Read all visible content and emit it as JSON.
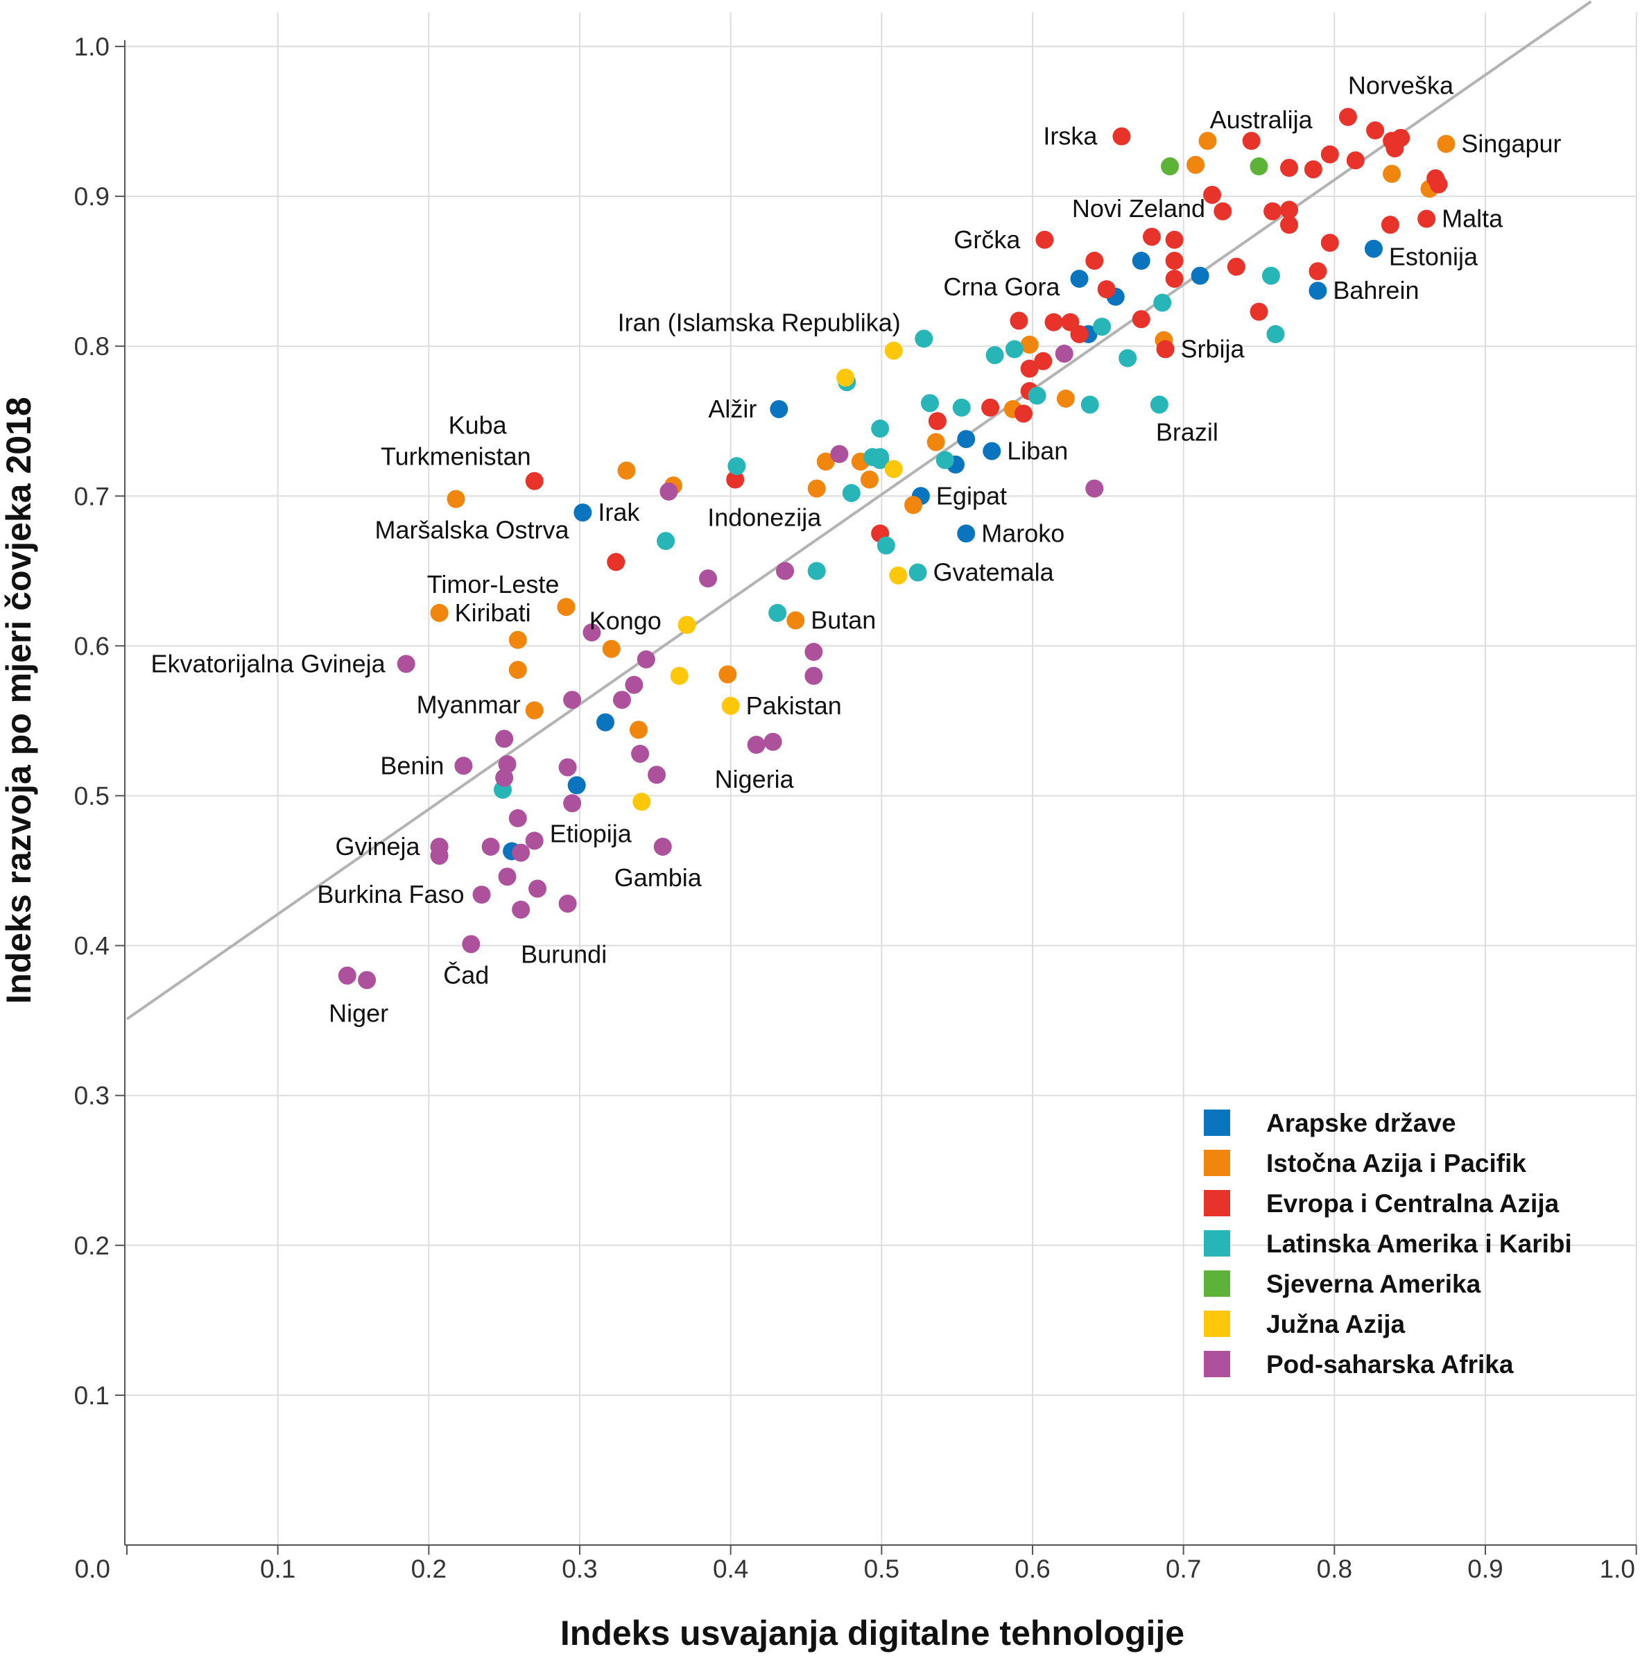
{
  "chart_data": {
    "type": "scatter",
    "title": "",
    "xlabel": "Indeks usvajanja digitalne tehnologije",
    "ylabel": "Indeks razvoja po mjeri čovjeka 2018",
    "xlim": [
      0.0,
      1.0
    ],
    "ylim": [
      0.0,
      1.0
    ],
    "x_ticks": [
      "0.0",
      "0.1",
      "0.2",
      "0.3",
      "0.4",
      "0.5",
      "0.6",
      "0.7",
      "0.8",
      "0.9",
      "1.0"
    ],
    "y_ticks": [
      "0.1",
      "0.2",
      "0.3",
      "0.4",
      "0.5",
      "0.6",
      "0.7",
      "0.8",
      "0.9",
      "1.0"
    ],
    "grid": true,
    "trendline": {
      "x": [
        0.0,
        0.97
      ],
      "y": [
        0.351,
        1.03
      ],
      "color": "#b3b3b3"
    },
    "legend_position": "bottom-right",
    "series": [
      {
        "name": "Arapske države",
        "color": "#0a74be",
        "points": [
          [
            0.432,
            0.758
          ],
          [
            0.302,
            0.689
          ],
          [
            0.317,
            0.549
          ],
          [
            0.298,
            0.507
          ],
          [
            0.255,
            0.463
          ],
          [
            0.526,
            0.7
          ],
          [
            0.549,
            0.721
          ],
          [
            0.556,
            0.738
          ],
          [
            0.573,
            0.73
          ],
          [
            0.556,
            0.675
          ],
          [
            0.631,
            0.845
          ],
          [
            0.637,
            0.808
          ],
          [
            0.655,
            0.833
          ],
          [
            0.672,
            0.857
          ],
          [
            0.711,
            0.847
          ],
          [
            0.826,
            0.865
          ],
          [
            0.789,
            0.837
          ]
        ]
      },
      {
        "name": "Istočna Azija i Pacifik",
        "color": "#f0860d",
        "points": [
          [
            0.218,
            0.698
          ],
          [
            0.331,
            0.717
          ],
          [
            0.362,
            0.707
          ],
          [
            0.291,
            0.626
          ],
          [
            0.207,
            0.622
          ],
          [
            0.259,
            0.604
          ],
          [
            0.259,
            0.584
          ],
          [
            0.321,
            0.598
          ],
          [
            0.27,
            0.557
          ],
          [
            0.339,
            0.544
          ],
          [
            0.398,
            0.581
          ],
          [
            0.443,
            0.617
          ],
          [
            0.457,
            0.705
          ],
          [
            0.463,
            0.723
          ],
          [
            0.486,
            0.723
          ],
          [
            0.492,
            0.711
          ],
          [
            0.536,
            0.736
          ],
          [
            0.521,
            0.694
          ],
          [
            0.587,
            0.758
          ],
          [
            0.598,
            0.801
          ],
          [
            0.622,
            0.765
          ],
          [
            0.687,
            0.804
          ],
          [
            0.708,
            0.921
          ],
          [
            0.716,
            0.937
          ],
          [
            0.838,
            0.915
          ],
          [
            0.863,
            0.905
          ],
          [
            0.874,
            0.935
          ]
        ]
      },
      {
        "name": "Evropa i Centralna Azija",
        "color": "#e8332a",
        "points": [
          [
            0.27,
            0.71
          ],
          [
            0.324,
            0.656
          ],
          [
            0.403,
            0.711
          ],
          [
            0.499,
            0.675
          ],
          [
            0.537,
            0.75
          ],
          [
            0.572,
            0.759
          ],
          [
            0.594,
            0.755
          ],
          [
            0.598,
            0.77
          ],
          [
            0.598,
            0.785
          ],
          [
            0.607,
            0.79
          ],
          [
            0.591,
            0.817
          ],
          [
            0.614,
            0.816
          ],
          [
            0.625,
            0.816
          ],
          [
            0.631,
            0.808
          ],
          [
            0.608,
            0.871
          ],
          [
            0.641,
            0.857
          ],
          [
            0.649,
            0.838
          ],
          [
            0.672,
            0.818
          ],
          [
            0.679,
            0.873
          ],
          [
            0.694,
            0.871
          ],
          [
            0.694,
            0.857
          ],
          [
            0.694,
            0.845
          ],
          [
            0.688,
            0.798
          ],
          [
            0.659,
            0.94
          ],
          [
            0.719,
            0.901
          ],
          [
            0.726,
            0.89
          ],
          [
            0.735,
            0.853
          ],
          [
            0.745,
            0.937
          ],
          [
            0.75,
            0.823
          ],
          [
            0.759,
            0.89
          ],
          [
            0.77,
            0.919
          ],
          [
            0.77,
            0.891
          ],
          [
            0.77,
            0.881
          ],
          [
            0.786,
            0.918
          ],
          [
            0.797,
            0.928
          ],
          [
            0.797,
            0.869
          ],
          [
            0.789,
            0.85
          ],
          [
            0.809,
            0.953
          ],
          [
            0.827,
            0.944
          ],
          [
            0.814,
            0.924
          ],
          [
            0.838,
            0.937
          ],
          [
            0.844,
            0.939
          ],
          [
            0.84,
            0.932
          ],
          [
            0.837,
            0.881
          ],
          [
            0.861,
            0.885
          ],
          [
            0.867,
            0.912
          ],
          [
            0.869,
            0.908
          ]
        ]
      },
      {
        "name": "Latinska Amerika i Karibi",
        "color": "#27b5b7",
        "points": [
          [
            0.249,
            0.504
          ],
          [
            0.357,
            0.67
          ],
          [
            0.404,
            0.72
          ],
          [
            0.431,
            0.622
          ],
          [
            0.457,
            0.65
          ],
          [
            0.477,
            0.776
          ],
          [
            0.48,
            0.702
          ],
          [
            0.494,
            0.726
          ],
          [
            0.499,
            0.745
          ],
          [
            0.499,
            0.726
          ],
          [
            0.499,
            0.724
          ],
          [
            0.503,
            0.667
          ],
          [
            0.524,
            0.649
          ],
          [
            0.528,
            0.805
          ],
          [
            0.532,
            0.762
          ],
          [
            0.542,
            0.724
          ],
          [
            0.553,
            0.759
          ],
          [
            0.575,
            0.794
          ],
          [
            0.588,
            0.798
          ],
          [
            0.603,
            0.767
          ],
          [
            0.638,
            0.761
          ],
          [
            0.646,
            0.813
          ],
          [
            0.663,
            0.792
          ],
          [
            0.684,
            0.761
          ],
          [
            0.686,
            0.829
          ],
          [
            0.758,
            0.847
          ],
          [
            0.761,
            0.808
          ]
        ]
      },
      {
        "name": "Sjeverna Amerika",
        "color": "#5cb337",
        "points": [
          [
            0.691,
            0.92
          ],
          [
            0.75,
            0.92
          ]
        ]
      },
      {
        "name": "Južna Azija",
        "color": "#fec70a",
        "points": [
          [
            0.341,
            0.496
          ],
          [
            0.366,
            0.58
          ],
          [
            0.371,
            0.614
          ],
          [
            0.4,
            0.56
          ],
          [
            0.476,
            0.779
          ],
          [
            0.508,
            0.797
          ],
          [
            0.508,
            0.718
          ],
          [
            0.511,
            0.647
          ]
        ]
      },
      {
        "name": "Pod-saharska Afrika",
        "color": "#ad519d",
        "points": [
          [
            0.146,
            0.38
          ],
          [
            0.159,
            0.377
          ],
          [
            0.185,
            0.588
          ],
          [
            0.223,
            0.52
          ],
          [
            0.207,
            0.466
          ],
          [
            0.207,
            0.46
          ],
          [
            0.228,
            0.401
          ],
          [
            0.235,
            0.434
          ],
          [
            0.241,
            0.466
          ],
          [
            0.25,
            0.538
          ],
          [
            0.252,
            0.521
          ],
          [
            0.25,
            0.512
          ],
          [
            0.252,
            0.446
          ],
          [
            0.259,
            0.485
          ],
          [
            0.261,
            0.462
          ],
          [
            0.261,
            0.424
          ],
          [
            0.27,
            0.47
          ],
          [
            0.272,
            0.438
          ],
          [
            0.292,
            0.428
          ],
          [
            0.292,
            0.519
          ],
          [
            0.295,
            0.495
          ],
          [
            0.295,
            0.564
          ],
          [
            0.308,
            0.609
          ],
          [
            0.328,
            0.564
          ],
          [
            0.336,
            0.574
          ],
          [
            0.34,
            0.528
          ],
          [
            0.344,
            0.591
          ],
          [
            0.351,
            0.514
          ],
          [
            0.355,
            0.466
          ],
          [
            0.359,
            0.703
          ],
          [
            0.385,
            0.645
          ],
          [
            0.417,
            0.534
          ],
          [
            0.428,
            0.536
          ],
          [
            0.436,
            0.65
          ],
          [
            0.455,
            0.596
          ],
          [
            0.455,
            0.58
          ],
          [
            0.472,
            0.728
          ],
          [
            0.621,
            0.795
          ],
          [
            0.641,
            0.705
          ]
        ]
      }
    ],
    "annotations": [
      {
        "text": "Norveška",
        "x": 0.809,
        "y": 0.953
      },
      {
        "text": "Australija",
        "x": 0.745,
        "y": 0.937
      },
      {
        "text": "Irska",
        "x": 0.659,
        "y": 0.94
      },
      {
        "text": "Singapur",
        "x": 0.874,
        "y": 0.935
      },
      {
        "text": "Novi Zeland",
        "x": 0.719,
        "y": 0.901
      },
      {
        "text": "Malta",
        "x": 0.861,
        "y": 0.885
      },
      {
        "text": "Grčka",
        "x": 0.608,
        "y": 0.871
      },
      {
        "text": "Estonija",
        "x": 0.826,
        "y": 0.865
      },
      {
        "text": "Crna Gora",
        "x": 0.631,
        "y": 0.845
      },
      {
        "text": "Bahrein",
        "x": 0.789,
        "y": 0.837
      },
      {
        "text": "Iran (Islamska Republika)",
        "x": 0.508,
        "y": 0.797
      },
      {
        "text": "Srbija",
        "x": 0.688,
        "y": 0.798
      },
      {
        "text": "Kuba",
        "x": 0.27,
        "y": 0.71
      },
      {
        "text": "Alžir",
        "x": 0.432,
        "y": 0.758
      },
      {
        "text": "Brazil",
        "x": 0.684,
        "y": 0.761
      },
      {
        "text": "Turkmenistan",
        "x": 0.27,
        "y": 0.71
      },
      {
        "text": "Liban",
        "x": 0.573,
        "y": 0.73
      },
      {
        "text": "Egipat",
        "x": 0.526,
        "y": 0.7
      },
      {
        "text": "Irak",
        "x": 0.302,
        "y": 0.689
      },
      {
        "text": "Indonezija",
        "x": 0.403,
        "y": 0.711
      },
      {
        "text": "Maršalska Ostrva",
        "x": 0.218,
        "y": 0.698
      },
      {
        "text": "Maroko",
        "x": 0.556,
        "y": 0.675
      },
      {
        "text": "Timor-Leste",
        "x": 0.291,
        "y": 0.626
      },
      {
        "text": "Gvatemala",
        "x": 0.524,
        "y": 0.649
      },
      {
        "text": "Kongo",
        "x": 0.321,
        "y": 0.598
      },
      {
        "text": "Kiribati",
        "x": 0.207,
        "y": 0.622
      },
      {
        "text": "Butan",
        "x": 0.443,
        "y": 0.617
      },
      {
        "text": "Ekvatorijalna Gvineja",
        "x": 0.185,
        "y": 0.588
      },
      {
        "text": "Myanmar",
        "x": 0.27,
        "y": 0.557
      },
      {
        "text": "Pakistan",
        "x": 0.4,
        "y": 0.56
      },
      {
        "text": "Benin",
        "x": 0.223,
        "y": 0.52
      },
      {
        "text": "Nigeria",
        "x": 0.417,
        "y": 0.534
      },
      {
        "text": "Gvineja",
        "x": 0.207,
        "y": 0.466
      },
      {
        "text": "Etiopija",
        "x": 0.27,
        "y": 0.47
      },
      {
        "text": "Gambia",
        "x": 0.355,
        "y": 0.466
      },
      {
        "text": "Burkina Faso",
        "x": 0.235,
        "y": 0.434
      },
      {
        "text": "Burundi",
        "x": 0.261,
        "y": 0.424
      },
      {
        "text": "Čad",
        "x": 0.228,
        "y": 0.401
      },
      {
        "text": "Niger",
        "x": 0.159,
        "y": 0.377
      }
    ]
  }
}
